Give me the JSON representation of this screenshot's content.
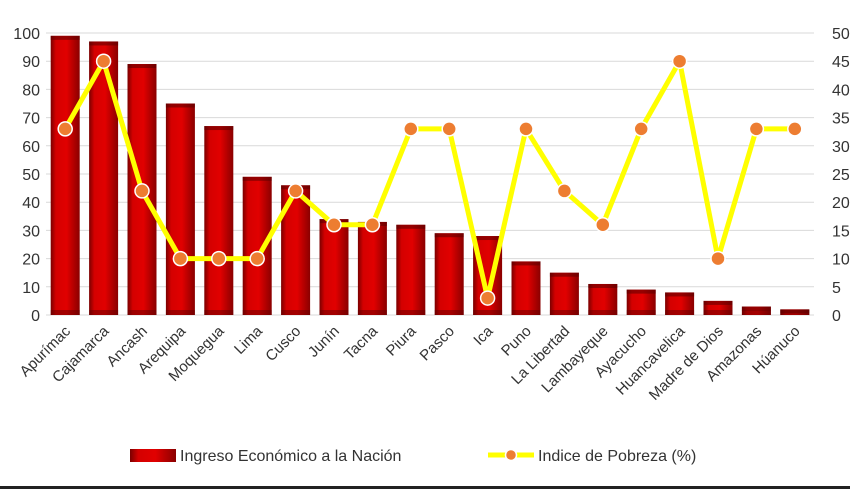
{
  "chart_data": {
    "type": "bar",
    "categories": [
      "Apurímac",
      "Cajamarca",
      "Ancash",
      "Arequipa",
      "Moquegua",
      "Lima",
      "Cusco",
      "Junín",
      "Tacna",
      "Piura",
      "Pasco",
      "Ica",
      "Puno",
      "La Libertad",
      "Lambayeque",
      "Ayacucho",
      "Huancavelica",
      "Madre de Dios",
      "Amazonas",
      "Húanuco"
    ],
    "series": [
      {
        "name": "Ingreso Económico a la Nación",
        "type": "bar",
        "axis": "left",
        "values": [
          99,
          97,
          89,
          75,
          67,
          49,
          46,
          34,
          33,
          32,
          29,
          28,
          19,
          15,
          11,
          9,
          8,
          5,
          3,
          2
        ],
        "color": "#c00000"
      },
      {
        "name": "Indice de Pobreza (%)",
        "type": "line",
        "axis": "right",
        "values": [
          33,
          45,
          22,
          10,
          10,
          10,
          22,
          16,
          16,
          33,
          33,
          3,
          33,
          22,
          16,
          33,
          45,
          10,
          33,
          33
        ],
        "line_color": "#ffff00",
        "marker_color": "#ed7d31"
      }
    ],
    "ylim_left": [
      0,
      100
    ],
    "yticks_left": [
      "0",
      "10",
      "20",
      "30",
      "40",
      "50",
      "60",
      "70",
      "80",
      "90",
      "100"
    ],
    "ylim_right": [
      0,
      50
    ],
    "yticks_right": [
      "0",
      "5",
      "10",
      "15",
      "20",
      "25",
      "30",
      "35",
      "40",
      "45",
      "50"
    ],
    "grid": true,
    "legend_position": "bottom"
  }
}
